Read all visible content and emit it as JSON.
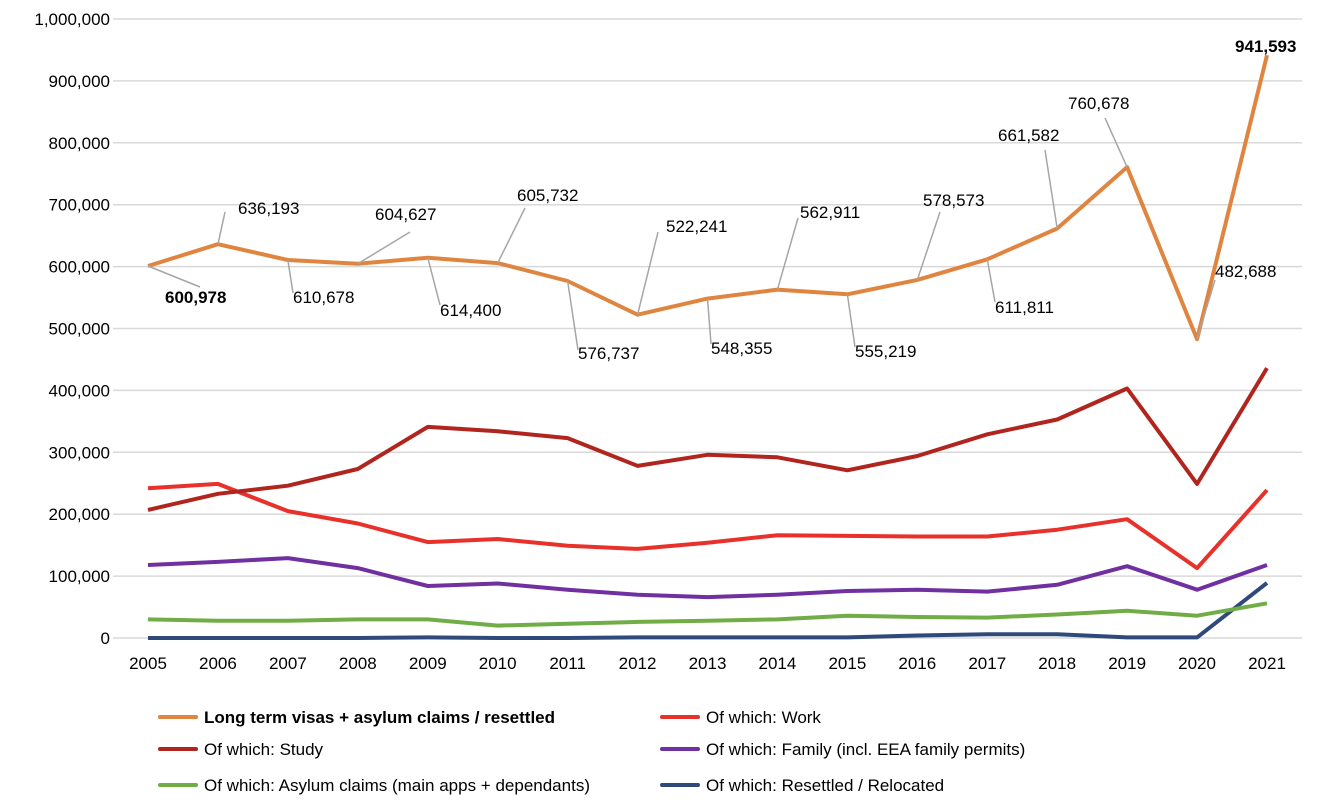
{
  "chart_data": {
    "type": "line",
    "title": "",
    "xlabel": "",
    "ylabel": "",
    "x": [
      2005,
      2006,
      2007,
      2008,
      2009,
      2010,
      2011,
      2012,
      2013,
      2014,
      2015,
      2016,
      2017,
      2018,
      2019,
      2020,
      2021
    ],
    "ylim": [
      0,
      1000000
    ],
    "yticks": [
      "0",
      "100,000",
      "200,000",
      "300,000",
      "400,000",
      "500,000",
      "600,000",
      "700,000",
      "800,000",
      "900,000",
      "1,000,000"
    ],
    "grid": true,
    "legend_position": "bottom",
    "series": [
      {
        "name": "Long term visas + asylum claims / resettled",
        "color": "#E0853F",
        "bold": true,
        "values": [
          600978,
          636193,
          610678,
          604627,
          614400,
          605732,
          576737,
          522241,
          548355,
          562911,
          555219,
          578573,
          611811,
          661582,
          760678,
          482688,
          941593
        ],
        "labels": [
          "600,978",
          "636,193",
          "610,678",
          "604,627",
          "614,400",
          "605,732",
          "576,737",
          "522,241",
          "548,355",
          "562,911",
          "555,219",
          "578,573",
          "611,811",
          "661,582",
          "760,678",
          "482,688",
          "941,593"
        ]
      },
      {
        "name": "Of which: Work",
        "color": "#E8312A",
        "values": [
          242000,
          249000,
          205000,
          185000,
          155000,
          160000,
          149000,
          144000,
          154000,
          166000,
          165000,
          164000,
          164000,
          175000,
          192000,
          113000,
          239000
        ]
      },
      {
        "name": "Of which: Study",
        "color": "#B0251E",
        "values": [
          207000,
          233000,
          246000,
          273000,
          341000,
          334000,
          323000,
          278000,
          296000,
          292000,
          271000,
          294000,
          329000,
          353000,
          403000,
          249000,
          436000
        ]
      },
      {
        "name": "Of which: Family (incl. EEA family permits)",
        "color": "#7030A0",
        "values": [
          118000,
          123000,
          129000,
          113000,
          84000,
          88000,
          78000,
          70000,
          66000,
          70000,
          76000,
          78000,
          75000,
          86000,
          116000,
          78000,
          118000
        ]
      },
      {
        "name": "Of which: Asylum claims (main apps + dependants)",
        "color": "#70AD47",
        "values": [
          30000,
          28000,
          28000,
          30000,
          30000,
          20000,
          23000,
          26000,
          28000,
          30000,
          36000,
          34000,
          33000,
          38000,
          44000,
          36000,
          56000
        ]
      },
      {
        "name": "Of which: Resettled / Relocated",
        "color": "#2F4A7A",
        "values": [
          0,
          0,
          0,
          0,
          1000,
          0,
          0,
          1000,
          1000,
          1000,
          1000,
          4000,
          6000,
          6000,
          1000,
          1000,
          89000
        ]
      }
    ]
  }
}
